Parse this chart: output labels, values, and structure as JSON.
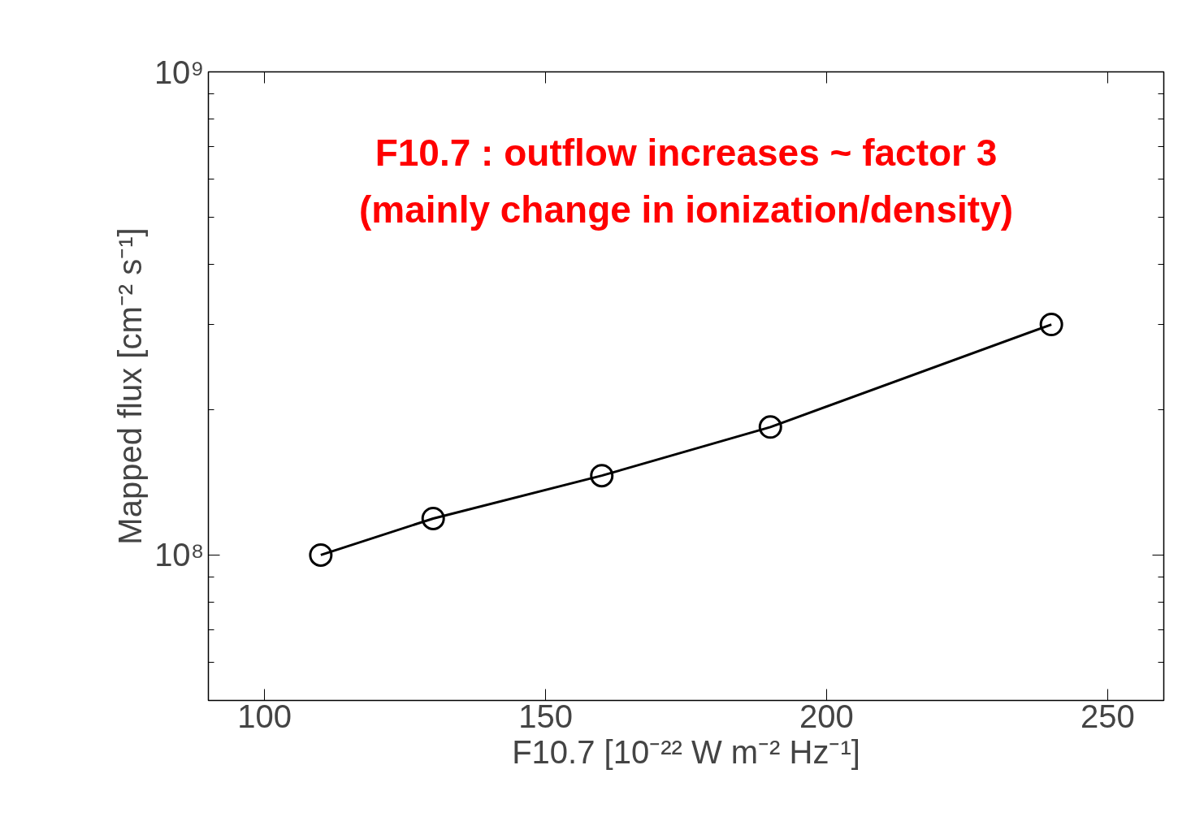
{
  "chart_data": {
    "type": "line",
    "xlabel": "F10.7 [10⁻²² W m⁻² Hz⁻¹]",
    "ylabel": "Mapped flux [cm⁻² s⁻¹]",
    "annotations": [
      "F10.7 : outflow increases ~ factor 3",
      "(mainly change in ionization/density)"
    ],
    "x": [
      110,
      130,
      160,
      190,
      240
    ],
    "series": [
      {
        "color": "#000000",
        "values": [
          100000000.0,
          119000000.0,
          146000000.0,
          184000000.0,
          300000000.0
        ]
      }
    ],
    "log": "y",
    "xlim": [
      90,
      260
    ],
    "ylim": [
      50000000.0,
      1000000000.0
    ],
    "xticks": [
      100,
      150,
      200,
      250
    ],
    "yticks": [
      {
        "value": 50000000.0,
        "label": null
      },
      {
        "value": 60000000.0,
        "label": null
      },
      {
        "value": 70000000.0,
        "label": null
      },
      {
        "value": 80000000.0,
        "label": null
      },
      {
        "value": 90000000.0,
        "label": null
      },
      {
        "value": 100000000.0,
        "label": "10⁸"
      },
      {
        "value": 200000000.0,
        "label": null
      },
      {
        "value": 300000000.0,
        "label": null
      },
      {
        "value": 400000000.0,
        "label": null
      },
      {
        "value": 500000000.0,
        "label": null
      },
      {
        "value": 600000000.0,
        "label": null
      },
      {
        "value": 700000000.0,
        "label": null
      },
      {
        "value": 800000000.0,
        "label": null
      },
      {
        "value": 900000000.0,
        "label": null
      },
      {
        "value": 1000000000.0,
        "label": "10⁹"
      }
    ],
    "marker": "circle",
    "line_style": "solid",
    "grid": false
  }
}
